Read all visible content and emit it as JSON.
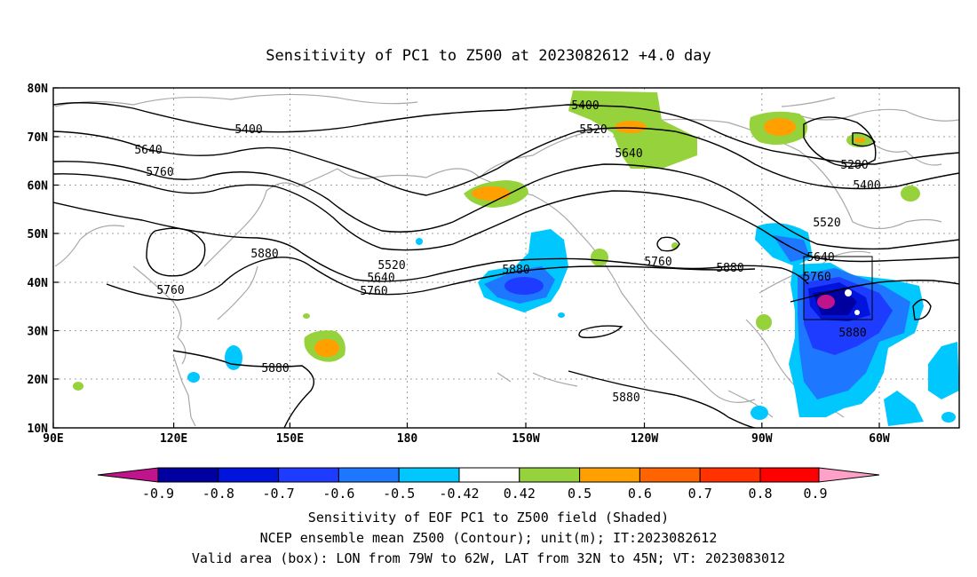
{
  "title": "Sensitivity of PC1 to Z500 at 2023082612 +4.0 day",
  "map": {
    "lon_ticks": [
      "90E",
      "120E",
      "150E",
      "180",
      "150W",
      "120W",
      "90W",
      "60W"
    ],
    "lat_ticks": [
      "80N",
      "70N",
      "60N",
      "50N",
      "40N",
      "30N",
      "20N",
      "10N"
    ],
    "contour_labels": [
      {
        "id": "c1",
        "text": "5400"
      },
      {
        "id": "c2",
        "text": "5400"
      },
      {
        "id": "c3",
        "text": "5520"
      },
      {
        "id": "c4",
        "text": "5640"
      },
      {
        "id": "c5",
        "text": "5640"
      },
      {
        "id": "c6",
        "text": "5760"
      },
      {
        "id": "c7",
        "text": "5880"
      },
      {
        "id": "c8",
        "text": "5760"
      },
      {
        "id": "c9",
        "text": "5520"
      },
      {
        "id": "c10",
        "text": "5640"
      },
      {
        "id": "c11",
        "text": "5760"
      },
      {
        "id": "c12",
        "text": "5880"
      },
      {
        "id": "c13",
        "text": "5760"
      },
      {
        "id": "c14",
        "text": "5880"
      },
      {
        "id": "c15",
        "text": "5280"
      },
      {
        "id": "c16",
        "text": "5400"
      },
      {
        "id": "c17",
        "text": "5520"
      },
      {
        "id": "c18",
        "text": "5640"
      },
      {
        "id": "c19",
        "text": "5760"
      },
      {
        "id": "c20",
        "text": "5880"
      },
      {
        "id": "c21",
        "text": "5880"
      },
      {
        "id": "c22",
        "text": "5880"
      }
    ],
    "valid_box": {
      "lon_from": "79W",
      "lon_to": "62W",
      "lat_from": "32N",
      "lat_to": "45N"
    }
  },
  "colorbar": {
    "labels": [
      "-0.9",
      "-0.8",
      "-0.7",
      "-0.6",
      "-0.5",
      "-0.42",
      "0.42",
      "0.5",
      "0.6",
      "0.7",
      "0.8",
      "0.9"
    ],
    "colors": [
      "#c0148c",
      "#0000a0",
      "#0014dc",
      "#1e3cff",
      "#1e78ff",
      "#00c8ff",
      "#ffffff",
      "#96d23c",
      "#ffa000",
      "#ff6400",
      "#ff3200",
      "#ff0000",
      "#ffa0c8"
    ]
  },
  "captions": {
    "line1": "Sensitivity of EOF PC1 to Z500 field (Shaded)",
    "line2": "NCEP ensemble mean Z500 (Contour); unit(m); IT:2023082612",
    "line3": "Valid area (box): LON from 79W to 62W, LAT from 32N to 45N; VT: 2023083012"
  }
}
